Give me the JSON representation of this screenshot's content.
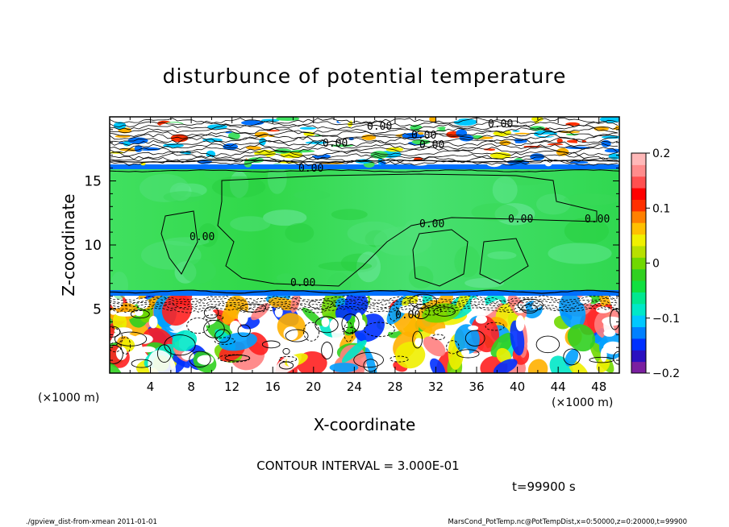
{
  "chart_data": {
    "type": "heatmap",
    "title": "disturbunce of potential temperature",
    "xlabel": "X-coordinate",
    "ylabel": "Z-coordinate",
    "x_unit": "(×1000 m)",
    "y_unit": "(×1000 m)",
    "xlim": [
      0,
      50
    ],
    "ylim": [
      0,
      20
    ],
    "x_ticks": [
      "4",
      "8",
      "12",
      "16",
      "20",
      "24",
      "28",
      "32",
      "36",
      "40",
      "44",
      "48"
    ],
    "x_tick_values": [
      4,
      8,
      12,
      16,
      20,
      24,
      28,
      32,
      36,
      40,
      44,
      48
    ],
    "y_ticks": [
      "5",
      "10",
      "15"
    ],
    "y_tick_values": [
      5,
      10,
      15
    ],
    "colorbar": {
      "range": [
        -0.2,
        0.2
      ],
      "tick_labels": [
        "0.2",
        "0.1",
        "0",
        "−0.1",
        "−0.2"
      ],
      "tick_values": [
        0.2,
        0.1,
        0,
        -0.1,
        -0.2
      ],
      "colors": [
        "#7a1fa0",
        "#2a10c0",
        "#0030ff",
        "#0080ff",
        "#00c8ff",
        "#00e8c8",
        "#00e890",
        "#10e040",
        "#30d020",
        "#70d800",
        "#b8e000",
        "#f0f000",
        "#ffc000",
        "#ff8000",
        "#ff3000",
        "#ff0000",
        "#ff5050",
        "#ff8c8c",
        "#ffb8b8"
      ]
    },
    "contour_labels": [
      "0.00",
      "0.00",
      "0.00",
      "0.00",
      "0.00",
      "0.00",
      "0.00",
      "0.00",
      "0.00",
      "0.00",
      "0.00",
      "0.00"
    ],
    "contour_interval": "CONTOUR INTERVAL = 3.000E-01",
    "time_label": "t=99900 s",
    "footer_left": "./gpview_dist-from-xmean  2011-01-01",
    "footer_right": "MarsCond_PotTemp.nc@PotTempDist,x=0:50000,z=0:20000,t=99900"
  }
}
